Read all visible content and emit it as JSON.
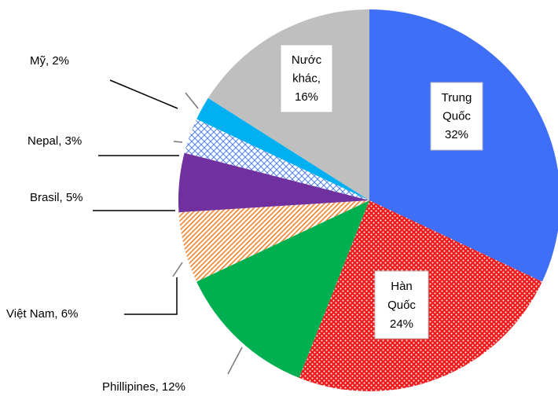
{
  "chart_data": {
    "type": "pie",
    "values": [
      32,
      24,
      12,
      6,
      5,
      3,
      2,
      16
    ],
    "value_labels": [
      [
        "Trung",
        "Quốc",
        "32%"
      ],
      [
        "Hàn",
        "Quốc",
        "24%"
      ],
      [
        "Phillipines, 12%"
      ],
      [
        "Việt Nam, 6%"
      ],
      [
        "Brasil, 5%"
      ],
      [
        "Nepal, 3%"
      ],
      [
        "Mỹ, 2%"
      ],
      [
        "Nước",
        "khác,",
        "16%"
      ]
    ],
    "colors": [
      "#3f6ef7",
      "#ee1c1c",
      "#00b050",
      "#f4822a",
      "#7030a0",
      "#4f7ee8",
      "#00b0f0",
      "#bfbfbf"
    ],
    "patterns": [
      "solid",
      "dots",
      "solid",
      "diagonal",
      "solid",
      "crosshatch",
      "solid",
      "solid"
    ]
  }
}
